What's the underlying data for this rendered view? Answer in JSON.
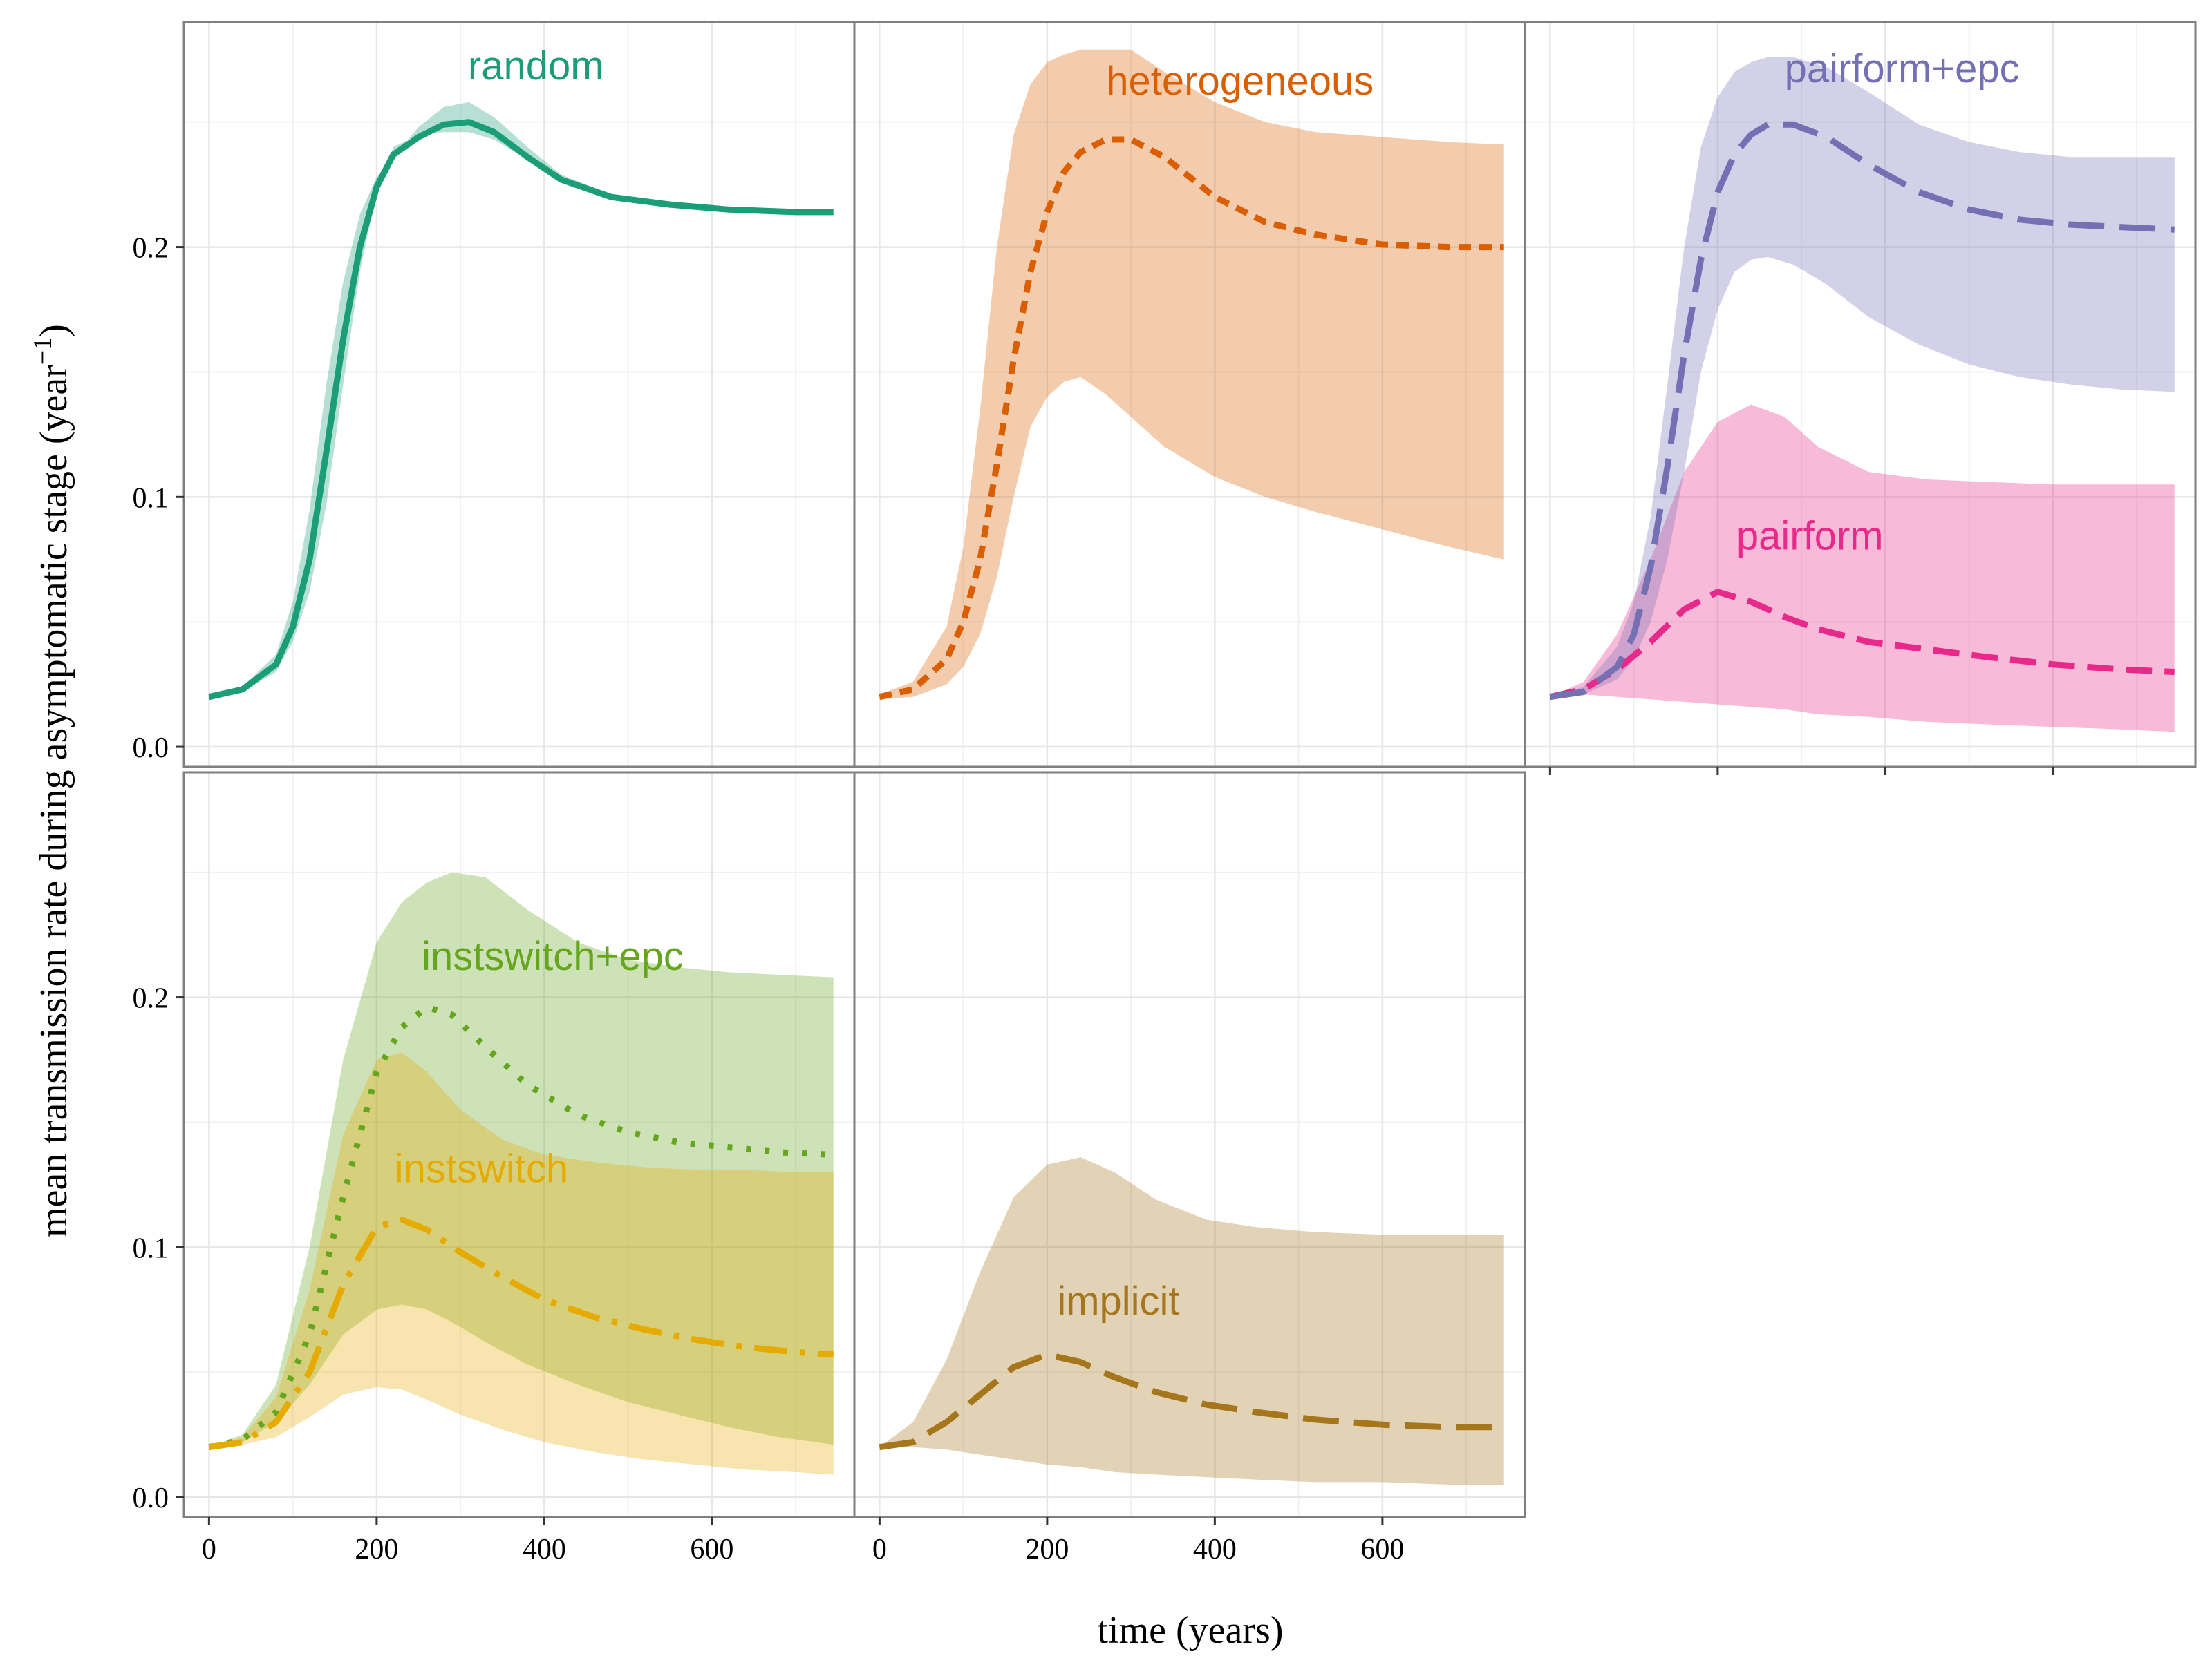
{
  "chart_data": {
    "type": "line",
    "layout": "facet-grid-2x3",
    "xlabel": "time (years)",
    "ylabel_main": "mean transmission rate during asymptomatic stage (year",
    "ylabel_sup": "−1",
    "ylabel_close": ")",
    "xlim": [
      -30,
      770
    ],
    "ylim": [
      -0.008,
      0.29
    ],
    "xticks": [
      0,
      200,
      400,
      600
    ],
    "xtick_labels": [
      "0",
      "200",
      "400",
      "600"
    ],
    "yticks": [
      0.0,
      0.1,
      0.2
    ],
    "ytick_labels": [
      "0.0",
      "0.1",
      "0.2"
    ],
    "grid": true,
    "panels": [
      {
        "id": "random",
        "series": [
          {
            "name": "random",
            "color": "#1b9e77",
            "dash": "solid",
            "label": "random",
            "label_at": [
              390,
              0.267
            ],
            "x": [
              0,
              40,
              80,
              100,
              120,
              140,
              160,
              180,
              200,
              220,
              250,
              280,
              310,
              340,
              380,
              420,
              480,
              550,
              620,
              700,
              745
            ],
            "y": [
              0.02,
              0.023,
              0.033,
              0.048,
              0.075,
              0.118,
              0.163,
              0.2,
              0.224,
              0.237,
              0.244,
              0.249,
              0.25,
              0.246,
              0.236,
              0.227,
              0.22,
              0.217,
              0.215,
              0.214,
              0.214
            ],
            "y_lower": [
              0.02,
              0.022,
              0.03,
              0.042,
              0.062,
              0.097,
              0.145,
              0.19,
              0.222,
              0.24,
              0.245,
              0.246,
              0.246,
              0.243,
              0.235,
              0.227,
              0.22,
              0.217,
              0.215,
              0.214,
              0.214
            ],
            "y_upper": [
              0.02,
              0.024,
              0.037,
              0.058,
              0.095,
              0.145,
              0.186,
              0.213,
              0.228,
              0.236,
              0.248,
              0.256,
              0.258,
              0.252,
              0.24,
              0.229,
              0.221,
              0.217,
              0.215,
              0.214,
              0.214
            ]
          }
        ]
      },
      {
        "id": "heterogeneous",
        "series": [
          {
            "name": "heterogeneous",
            "color": "#d95f02",
            "dash": "short",
            "label": "heterogeneous",
            "label_at": [
              430,
              0.261
            ],
            "x": [
              0,
              40,
              80,
              100,
              120,
              140,
              160,
              180,
              200,
              220,
              240,
              270,
              300,
              340,
              400,
              460,
              520,
              600,
              680,
              745
            ],
            "y": [
              0.02,
              0.023,
              0.035,
              0.05,
              0.075,
              0.113,
              0.155,
              0.19,
              0.214,
              0.23,
              0.238,
              0.243,
              0.243,
              0.236,
              0.22,
              0.21,
              0.205,
              0.201,
              0.2,
              0.2
            ],
            "y_lower": [
              0.019,
              0.02,
              0.025,
              0.032,
              0.045,
              0.068,
              0.1,
              0.128,
              0.14,
              0.146,
              0.148,
              0.141,
              0.132,
              0.12,
              0.108,
              0.1,
              0.094,
              0.087,
              0.08,
              0.075
            ],
            "y_upper": [
              0.021,
              0.026,
              0.048,
              0.08,
              0.135,
              0.2,
              0.245,
              0.265,
              0.274,
              0.277,
              0.279,
              0.279,
              0.279,
              0.27,
              0.258,
              0.25,
              0.246,
              0.244,
              0.242,
              0.241
            ]
          }
        ]
      },
      {
        "id": "pairform",
        "series": [
          {
            "name": "pairform",
            "color": "#e7298a",
            "dash": "medium",
            "label": "pairform",
            "label_at": [
              310,
              0.079
            ],
            "x": [
              0,
              40,
              80,
              120,
              160,
              200,
              240,
              280,
              320,
              380,
              450,
              520,
              600,
              680,
              745
            ],
            "y": [
              0.02,
              0.023,
              0.031,
              0.042,
              0.055,
              0.062,
              0.058,
              0.052,
              0.047,
              0.042,
              0.039,
              0.036,
              0.033,
              0.031,
              0.03
            ],
            "y_lower": [
              0.02,
              0.021,
              0.02,
              0.019,
              0.018,
              0.017,
              0.016,
              0.015,
              0.013,
              0.012,
              0.01,
              0.009,
              0.008,
              0.007,
              0.006
            ],
            "y_upper": [
              0.02,
              0.026,
              0.045,
              0.075,
              0.11,
              0.13,
              0.137,
              0.132,
              0.12,
              0.11,
              0.107,
              0.106,
              0.105,
              0.105,
              0.105
            ]
          },
          {
            "name": "pairform+epc",
            "color": "#7570b3",
            "dash": "long",
            "label": "pairform+epc",
            "label_at": [
              420,
              0.266
            ],
            "x": [
              0,
              40,
              80,
              100,
              120,
              140,
              160,
              180,
              200,
              220,
              240,
              260,
              290,
              330,
              380,
              440,
              500,
              560,
              620,
              680,
              745
            ],
            "y": [
              0.02,
              0.022,
              0.032,
              0.045,
              0.072,
              0.112,
              0.157,
              0.195,
              0.222,
              0.237,
              0.245,
              0.249,
              0.249,
              0.244,
              0.233,
              0.222,
              0.215,
              0.211,
              0.209,
              0.208,
              0.207
            ],
            "y_lower": [
              0.02,
              0.021,
              0.027,
              0.035,
              0.05,
              0.075,
              0.11,
              0.15,
              0.175,
              0.19,
              0.195,
              0.196,
              0.193,
              0.185,
              0.172,
              0.161,
              0.153,
              0.148,
              0.145,
              0.143,
              0.142
            ],
            "y_upper": [
              0.02,
              0.024,
              0.04,
              0.058,
              0.092,
              0.145,
              0.2,
              0.24,
              0.26,
              0.27,
              0.274,
              0.276,
              0.276,
              0.272,
              0.262,
              0.249,
              0.242,
              0.238,
              0.236,
              0.236,
              0.236
            ]
          }
        ]
      },
      {
        "id": "instswitch",
        "series": [
          {
            "name": "instswitch+epc",
            "color": "#66a61e",
            "dash": "dotted",
            "label": "instswitch+epc",
            "label_at": [
              410,
              0.211
            ],
            "x": [
              0,
              40,
              80,
              120,
              160,
              200,
              230,
              260,
              290,
              330,
              380,
              440,
              500,
              560,
              620,
              680,
              745
            ],
            "y": [
              0.02,
              0.023,
              0.034,
              0.065,
              0.12,
              0.17,
              0.188,
              0.196,
              0.193,
              0.18,
              0.165,
              0.153,
              0.146,
              0.142,
              0.14,
              0.138,
              0.137
            ],
            "y_lower": [
              0.02,
              0.022,
              0.03,
              0.045,
              0.065,
              0.075,
              0.077,
              0.075,
              0.07,
              0.062,
              0.053,
              0.045,
              0.038,
              0.033,
              0.028,
              0.024,
              0.021
            ],
            "y_upper": [
              0.02,
              0.025,
              0.045,
              0.1,
              0.175,
              0.222,
              0.238,
              0.246,
              0.25,
              0.248,
              0.235,
              0.222,
              0.215,
              0.212,
              0.21,
              0.209,
              0.208
            ]
          },
          {
            "name": "instswitch",
            "color": "#e6ab02",
            "dash": "dashdot",
            "label": "instswitch",
            "label_at": [
              325,
              0.126
            ],
            "x": [
              0,
              40,
              80,
              120,
              160,
              200,
              230,
              260,
              300,
              350,
              400,
              460,
              520,
              580,
              640,
              700,
              745
            ],
            "y": [
              0.02,
              0.022,
              0.03,
              0.05,
              0.085,
              0.108,
              0.111,
              0.107,
              0.098,
              0.088,
              0.079,
              0.072,
              0.067,
              0.063,
              0.06,
              0.058,
              0.057
            ],
            "y_lower": [
              0.02,
              0.021,
              0.024,
              0.032,
              0.041,
              0.044,
              0.043,
              0.039,
              0.033,
              0.027,
              0.022,
              0.018,
              0.015,
              0.013,
              0.011,
              0.01,
              0.009
            ],
            "y_upper": [
              0.02,
              0.024,
              0.04,
              0.083,
              0.145,
              0.175,
              0.178,
              0.17,
              0.155,
              0.143,
              0.137,
              0.134,
              0.132,
              0.131,
              0.131,
              0.13,
              0.13
            ]
          }
        ]
      },
      {
        "id": "implicit",
        "series": [
          {
            "name": "implicit",
            "color": "#a6761d",
            "dash": "long",
            "label": "implicit",
            "label_at": [
              285,
              0.073
            ],
            "x": [
              0,
              40,
              80,
              120,
              160,
              200,
              240,
              280,
              330,
              390,
              450,
              520,
              600,
              680,
              745
            ],
            "y": [
              0.02,
              0.022,
              0.03,
              0.041,
              0.052,
              0.057,
              0.054,
              0.048,
              0.042,
              0.037,
              0.034,
              0.031,
              0.029,
              0.028,
              0.028
            ],
            "y_lower": [
              0.02,
              0.02,
              0.019,
              0.017,
              0.015,
              0.013,
              0.012,
              0.01,
              0.009,
              0.008,
              0.007,
              0.006,
              0.006,
              0.005,
              0.005
            ],
            "y_upper": [
              0.02,
              0.03,
              0.055,
              0.09,
              0.12,
              0.133,
              0.136,
              0.13,
              0.119,
              0.111,
              0.108,
              0.106,
              0.105,
              0.105,
              0.105
            ]
          }
        ]
      }
    ]
  }
}
